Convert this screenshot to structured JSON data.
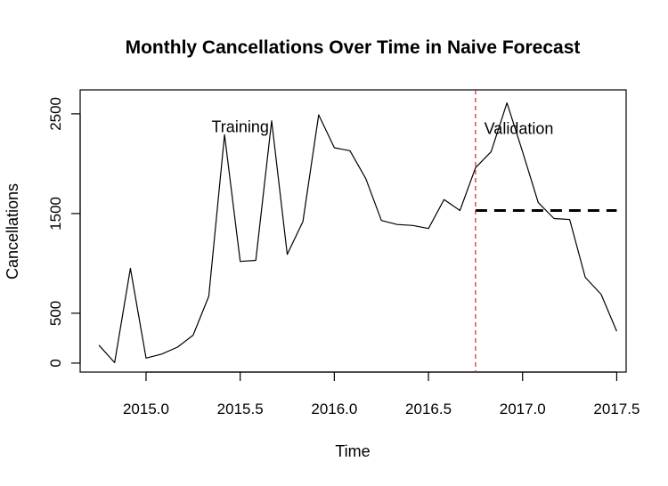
{
  "chart_data": {
    "type": "line",
    "title": "Monthly Cancellations Over Time in Naive Forecast",
    "xlabel": "Time",
    "ylabel": "Cancellations",
    "xlim": [
      2014.65,
      2017.55
    ],
    "ylim": [
      -90,
      2740
    ],
    "xticks": [
      2015.0,
      2015.5,
      2016.0,
      2016.5,
      2017.0,
      2017.5
    ],
    "xtick_labels": [
      "2015.0",
      "2015.5",
      "2016.0",
      "2016.5",
      "2017.0",
      "2017.5"
    ],
    "yticks": [
      0,
      500,
      1500,
      2500
    ],
    "ytick_labels": [
      "0",
      "500",
      "1500",
      "2500"
    ],
    "grid": false,
    "series": [
      {
        "color": "#000000",
        "x": [
          2014.75,
          2014.833,
          2014.917,
          2015.0,
          2015.083,
          2015.167,
          2015.25,
          2015.333,
          2015.417,
          2015.5,
          2015.583,
          2015.667,
          2015.75,
          2015.833,
          2015.917,
          2016.0,
          2016.083,
          2016.167,
          2016.25,
          2016.333,
          2016.417,
          2016.5,
          2016.583,
          2016.667,
          2016.75,
          2016.833,
          2016.917,
          2017.0,
          2017.083,
          2017.167,
          2017.25,
          2017.333,
          2017.417,
          2017.5
        ],
        "y": [
          180,
          5,
          950,
          50,
          90,
          160,
          280,
          670,
          2290,
          1020,
          1030,
          2430,
          1090,
          1420,
          2490,
          2160,
          2130,
          1850,
          1430,
          1390,
          1380,
          1350,
          1640,
          1530,
          1960,
          2120,
          2610,
          2120,
          1610,
          1450,
          1440,
          860,
          690,
          320
        ]
      },
      {
        "color": "#000000",
        "style": "dashed",
        "x": [
          2016.75,
          2017.5
        ],
        "y": [
          1530,
          1530
        ]
      }
    ],
    "vlines": [
      {
        "x": 2016.75,
        "color": "#e41a1c",
        "style": "dashed"
      }
    ],
    "annotations": [
      {
        "text": "Training",
        "x": 2015.5,
        "y": 2370
      },
      {
        "text": "Validation",
        "x": 2016.98,
        "y": 2350
      }
    ]
  }
}
